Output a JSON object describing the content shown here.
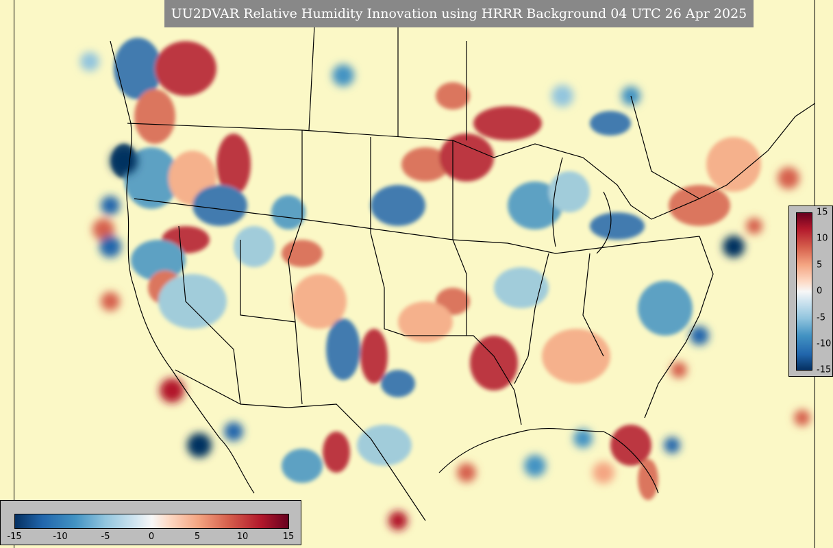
{
  "title": "UU2DVAR Relative Humidity Innovation using HRRR Background 04 UTC 26 Apr 2025",
  "colorbar": {
    "ticks": [
      "15",
      "10",
      "5",
      "0",
      "-5",
      "-10",
      "-15"
    ],
    "htick_labels": [
      "-15",
      "-10",
      "-5",
      "0",
      "5",
      "10",
      "15"
    ],
    "colormap": "RdBu_r",
    "min": -15,
    "max": 15
  },
  "colors": {
    "background": "#fbf8c6",
    "positive": "#b2182b",
    "negative": "#2166ac",
    "panel": "#bdbdbd",
    "title_bg": "#888888"
  }
}
